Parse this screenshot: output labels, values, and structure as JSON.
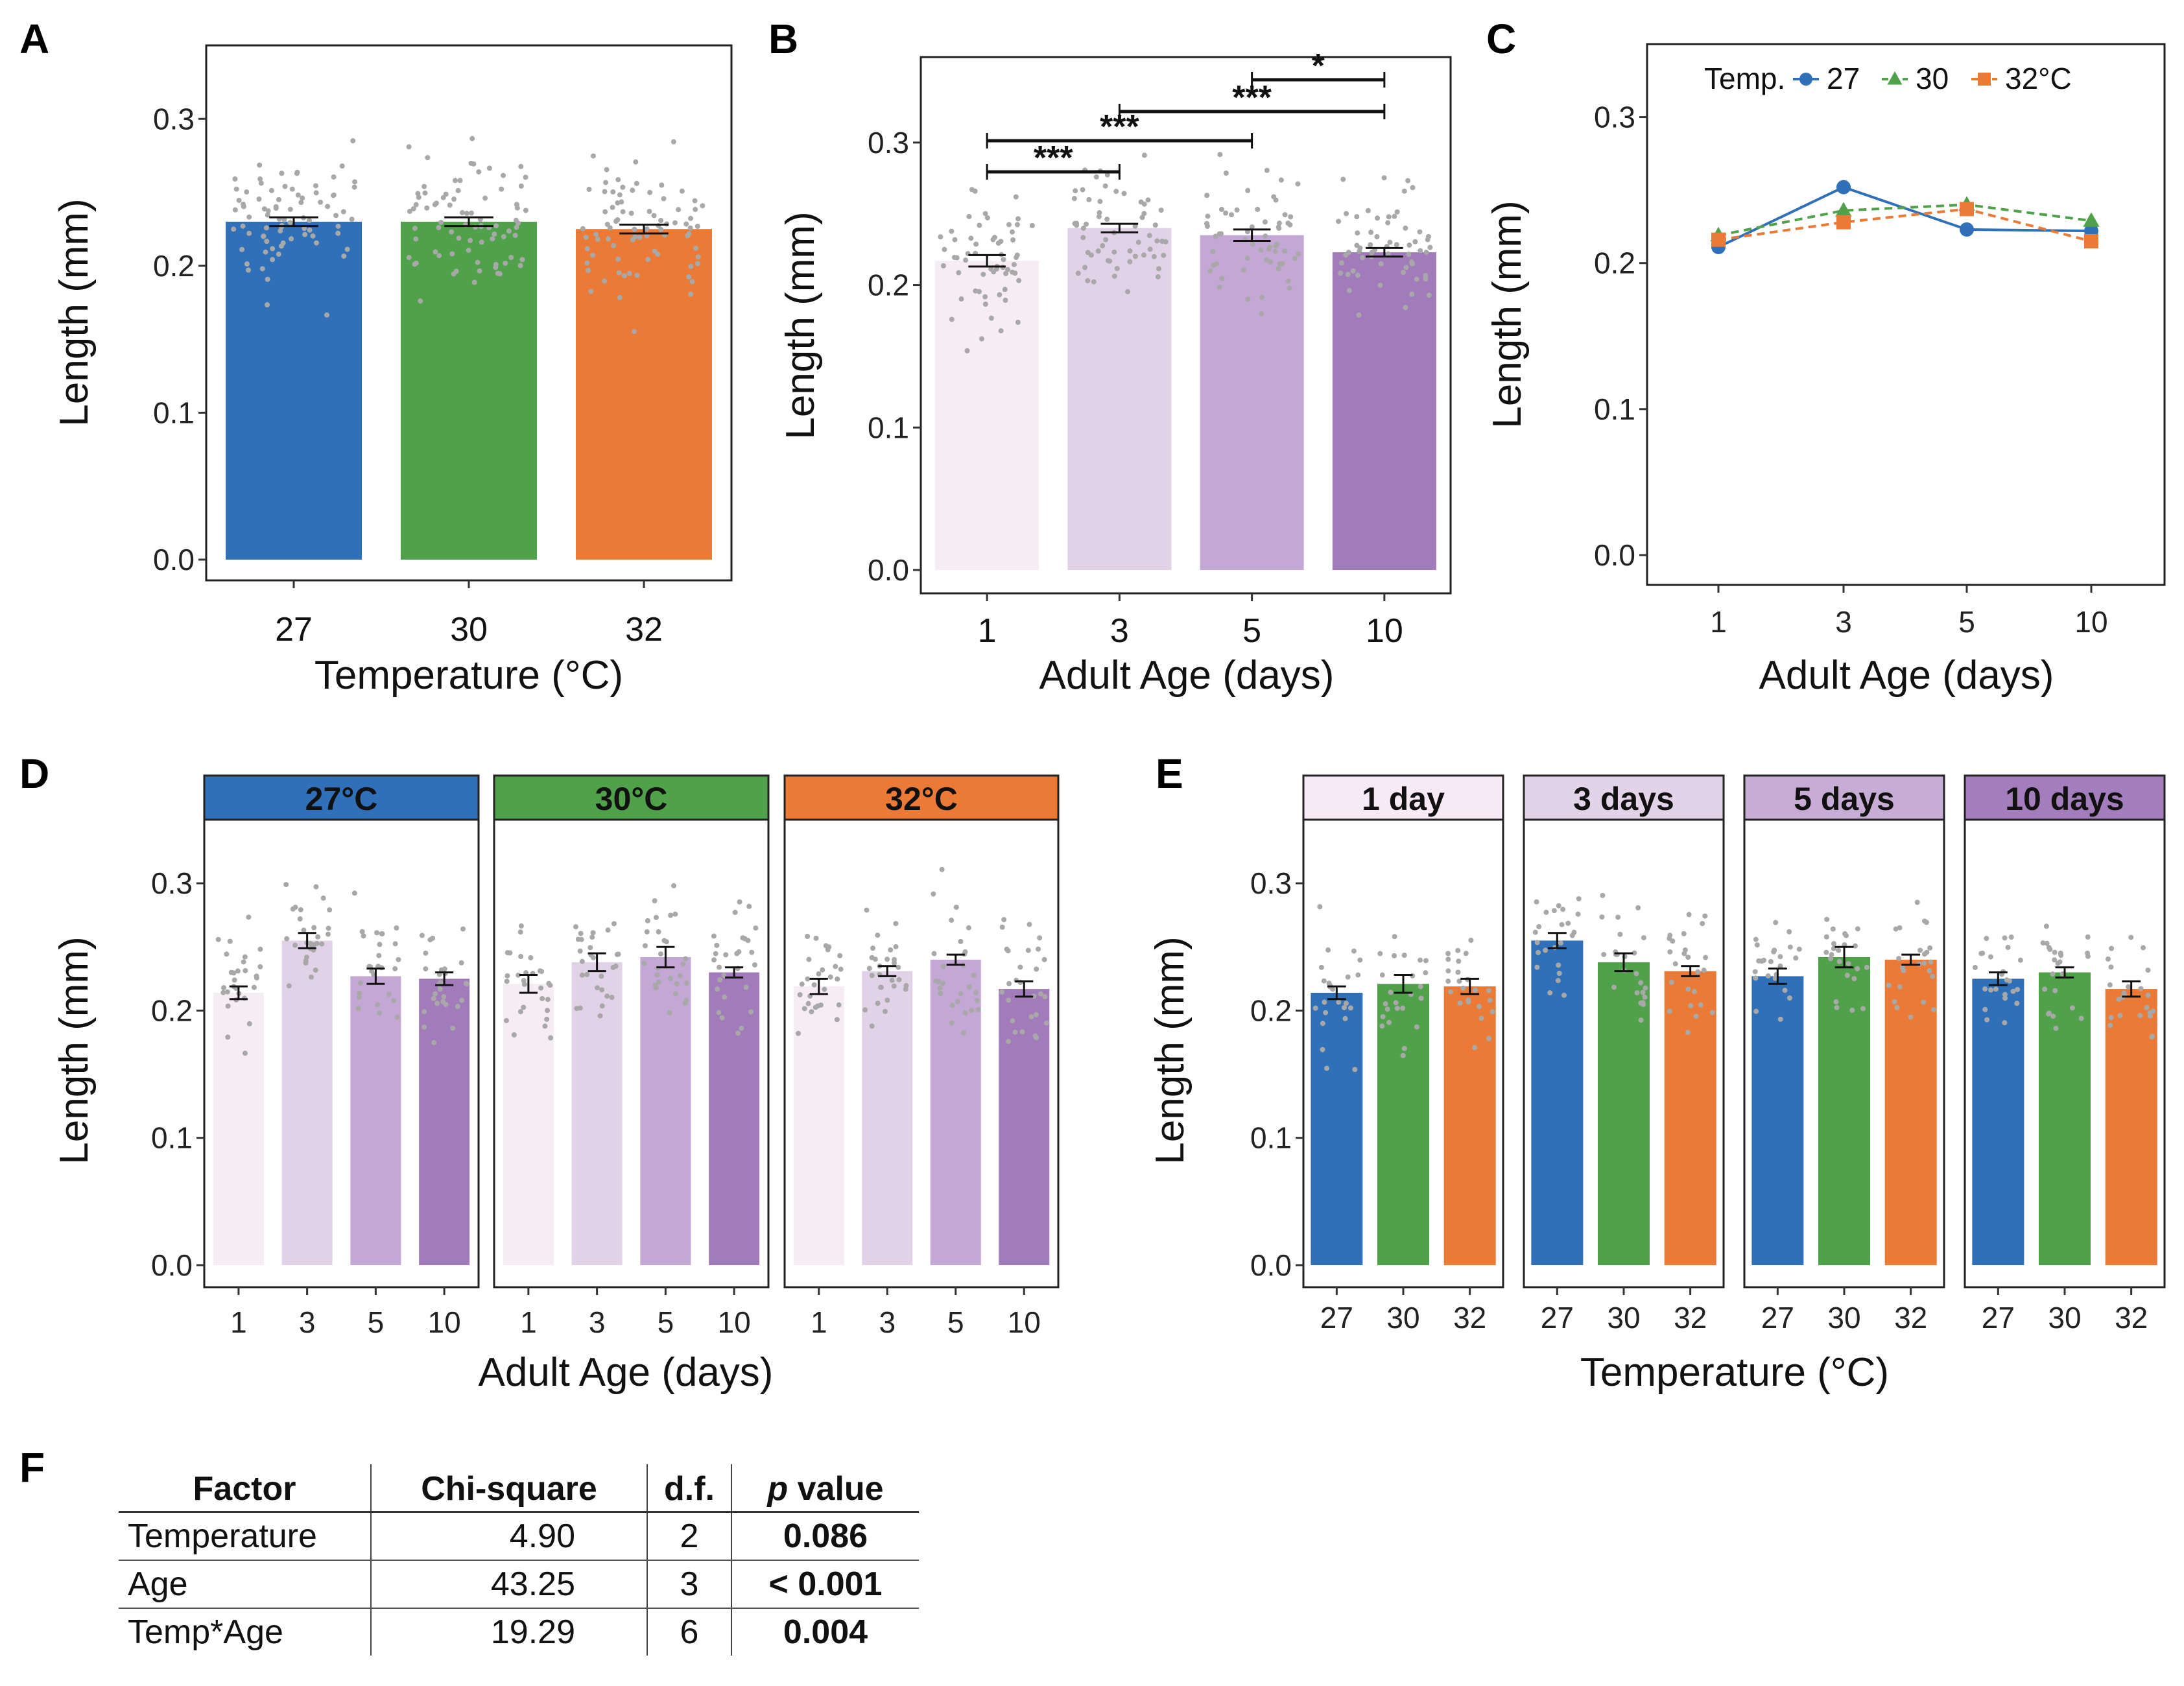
{
  "panel_labels": {
    "A": "A",
    "B": "B",
    "C": "C",
    "D": "D",
    "E": "E",
    "F": "F"
  },
  "colors": {
    "t27": "#3070b8",
    "t30": "#4fa24a",
    "t32": "#ea7a36",
    "age1": "#f6ecf4",
    "age3": "#e2d2e8",
    "age5": "#c3a7d4",
    "age10": "#a27bba",
    "dots": "#a8a8a8",
    "strip_day1": "#f8eaf5",
    "strip_day3": "#e3d3e8",
    "strip_day5": "#c7add6",
    "strip_day10": "#a47dbc"
  },
  "chart_data": [
    {
      "id": "A",
      "type": "bar",
      "categories": [
        "27",
        "30",
        "32"
      ],
      "values": [
        0.23,
        0.23,
        0.225
      ],
      "errors": [
        0.003,
        0.003,
        0.003
      ],
      "xlabel": "Temperature (°C)",
      "ylabel": "Length (mm)",
      "ylim": [
        0,
        0.35
      ],
      "yticks": [
        "0.0",
        "0.1",
        "0.2",
        "0.3"
      ]
    },
    {
      "id": "B",
      "type": "bar",
      "categories": [
        "1",
        "3",
        "5",
        "10"
      ],
      "values": [
        0.217,
        0.24,
        0.235,
        0.223
      ],
      "errors": [
        0.004,
        0.003,
        0.004,
        0.003
      ],
      "xlabel": "Adult Age (days)",
      "ylabel": "Length (mm)",
      "ylim": [
        0,
        0.36
      ],
      "yticks": [
        "0.0",
        "0.1",
        "0.2",
        "0.3"
      ],
      "significance": [
        {
          "from": "1",
          "to": "3",
          "label": "***"
        },
        {
          "from": "1",
          "to": "5",
          "label": "***"
        },
        {
          "from": "3",
          "to": "10",
          "label": "***"
        },
        {
          "from": "5",
          "to": "10",
          "label": "*"
        }
      ]
    },
    {
      "id": "C",
      "type": "line",
      "x": [
        "1",
        "3",
        "5",
        "10"
      ],
      "series": [
        {
          "name": "27",
          "values": [
            0.211,
            0.252,
            0.223,
            0.222
          ],
          "marker": "circle",
          "dash": "solid"
        },
        {
          "name": "30",
          "values": [
            0.219,
            0.236,
            0.24,
            0.229
          ],
          "marker": "triangle",
          "dash": "dashed"
        },
        {
          "name": "32°C",
          "values": [
            0.216,
            0.228,
            0.237,
            0.215
          ],
          "marker": "square",
          "dash": "dashed"
        }
      ],
      "legend_title": "Temp.",
      "xlabel": "Adult Age (days)",
      "ylabel": "Length (mm)",
      "ylim": [
        0,
        0.35
      ],
      "yticks": [
        "0.0",
        "0.1",
        "0.2",
        "0.3"
      ]
    },
    {
      "id": "D",
      "type": "bar",
      "facets": [
        {
          "label": "27°C",
          "categories": [
            "1",
            "3",
            "5",
            "10"
          ],
          "values": [
            0.214,
            0.255,
            0.227,
            0.225
          ],
          "errors": [
            0.005,
            0.006,
            0.006,
            0.005
          ]
        },
        {
          "label": "30°C",
          "categories": [
            "1",
            "3",
            "5",
            "10"
          ],
          "values": [
            0.221,
            0.238,
            0.242,
            0.23
          ],
          "errors": [
            0.007,
            0.007,
            0.008,
            0.004
          ]
        },
        {
          "label": "32°C",
          "categories": [
            "1",
            "3",
            "5",
            "10"
          ],
          "values": [
            0.219,
            0.231,
            0.24,
            0.217
          ],
          "errors": [
            0.006,
            0.004,
            0.004,
            0.006
          ]
        }
      ],
      "xlabel": "Adult Age (days)",
      "ylabel": "Length (mm)",
      "ylim": [
        0,
        0.35
      ],
      "yticks": [
        "0.0",
        "0.1",
        "0.2",
        "0.3"
      ]
    },
    {
      "id": "E",
      "type": "bar",
      "facets": [
        {
          "label": "1 day",
          "categories": [
            "27",
            "30",
            "32"
          ],
          "values": [
            0.214,
            0.221,
            0.219
          ],
          "errors": [
            0.005,
            0.007,
            0.006
          ]
        },
        {
          "label": "3 days",
          "categories": [
            "27",
            "30",
            "32"
          ],
          "values": [
            0.255,
            0.238,
            0.231
          ],
          "errors": [
            0.006,
            0.007,
            0.004
          ]
        },
        {
          "label": "5 days",
          "categories": [
            "27",
            "30",
            "32"
          ],
          "values": [
            0.227,
            0.242,
            0.24
          ],
          "errors": [
            0.006,
            0.008,
            0.004
          ]
        },
        {
          "label": "10 days",
          "categories": [
            "27",
            "30",
            "32"
          ],
          "values": [
            0.225,
            0.23,
            0.217
          ],
          "errors": [
            0.005,
            0.004,
            0.006
          ]
        }
      ],
      "xlabel": "Temperature (°C)",
      "ylabel": "Length (mm)",
      "ylim": [
        0,
        0.35
      ],
      "yticks": [
        "0.0",
        "0.1",
        "0.2",
        "0.3"
      ]
    },
    {
      "id": "F",
      "type": "table",
      "columns": [
        "Factor",
        "Chi-square",
        "d.f.",
        "p value"
      ],
      "rows": [
        [
          "Temperature",
          "4.90",
          "2",
          "0.086"
        ],
        [
          "Age",
          "43.25",
          "3",
          "< 0.001"
        ],
        [
          "Temp*Age",
          "19.29",
          "6",
          "0.004"
        ]
      ]
    }
  ]
}
